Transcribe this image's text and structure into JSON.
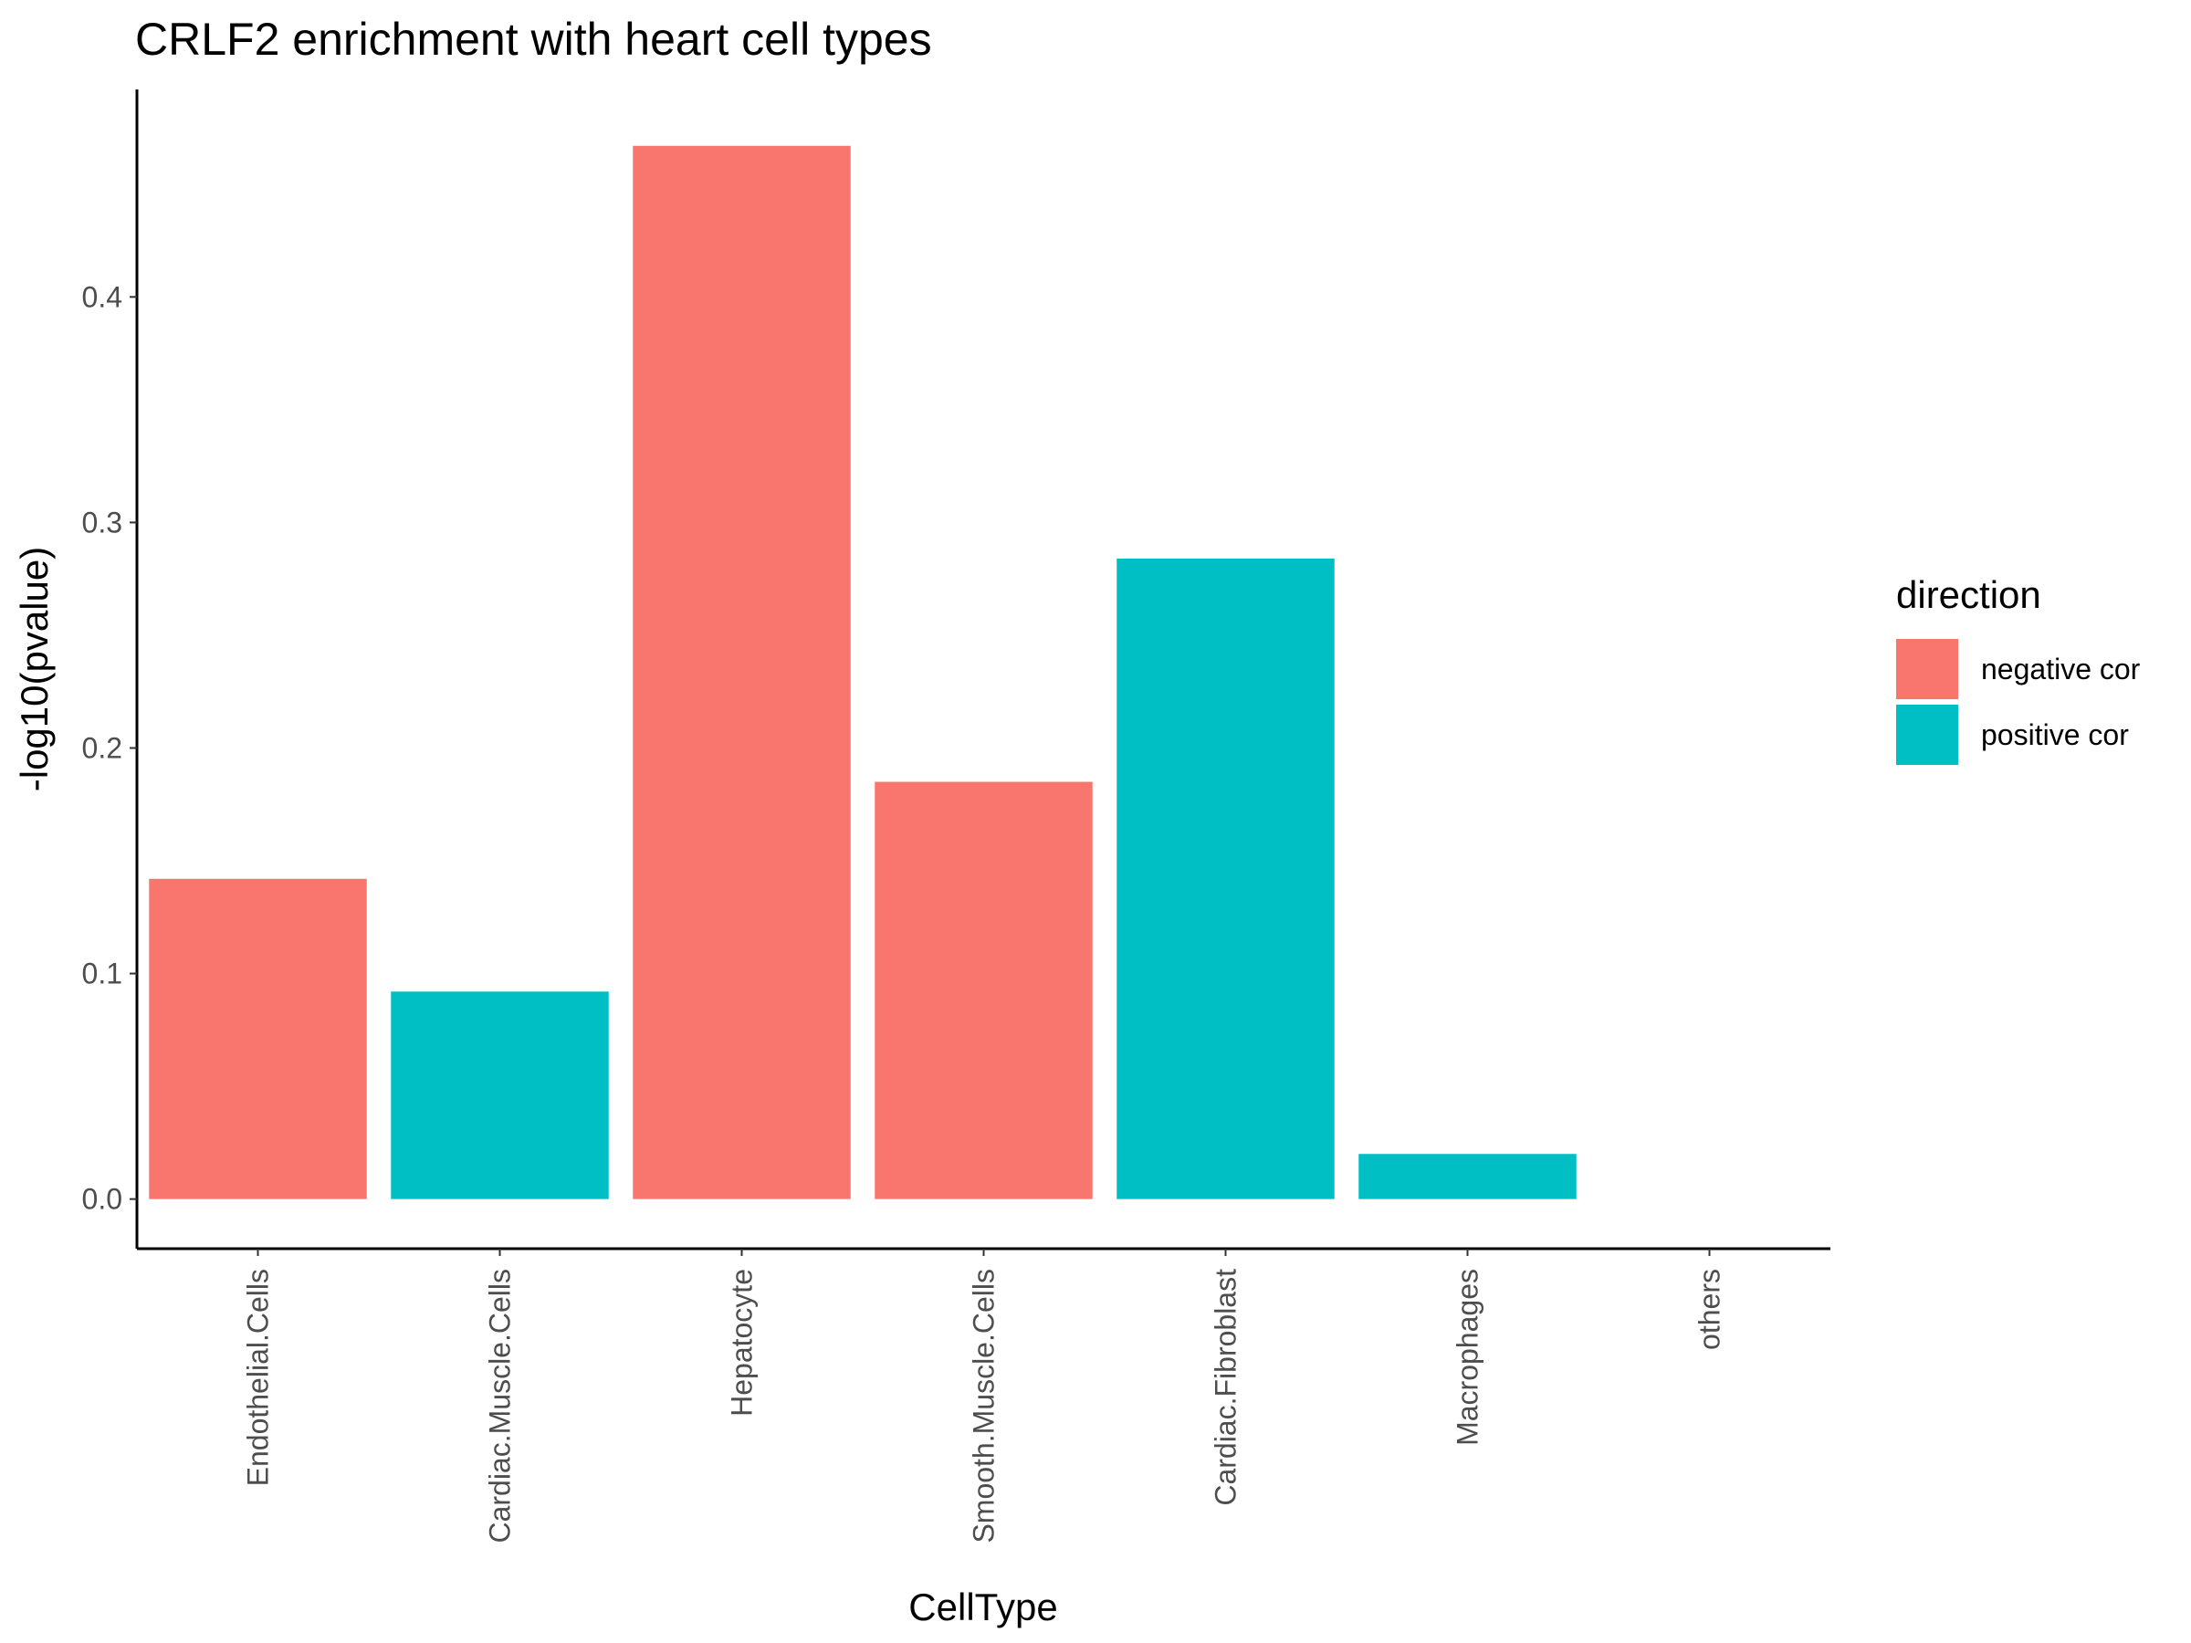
{
  "chart_data": {
    "type": "bar",
    "title": "CRLF2 enrichment with heart cell types",
    "xlabel": "CellType",
    "ylabel": "-log10(pvalue)",
    "categories": [
      "Endothelial.Cells",
      "Cardiac.Muscle.Cells",
      "Hepatocyte",
      "Smooth.Muscle.Cells",
      "Cardiac.Fibroblast",
      "Macrophages",
      "others"
    ],
    "values": [
      0.142,
      0.092,
      0.467,
      0.185,
      0.284,
      0.02,
      0
    ],
    "direction": [
      "negative cor",
      "positive cor",
      "negative cor",
      "negative cor",
      "positive cor",
      "positive cor",
      null
    ],
    "ylim": [
      -0.022,
      0.492
    ],
    "yticks": [
      0.0,
      0.1,
      0.2,
      0.3,
      0.4
    ],
    "ytick_labels": [
      "0.0",
      "0.1",
      "0.2",
      "0.3",
      "0.4"
    ],
    "grid": false,
    "legend": {
      "title": "direction",
      "position": "right",
      "entries": [
        {
          "label": "negative cor",
          "color": "#F8766D"
        },
        {
          "label": "positive cor",
          "color": "#00BFC4"
        }
      ]
    }
  }
}
